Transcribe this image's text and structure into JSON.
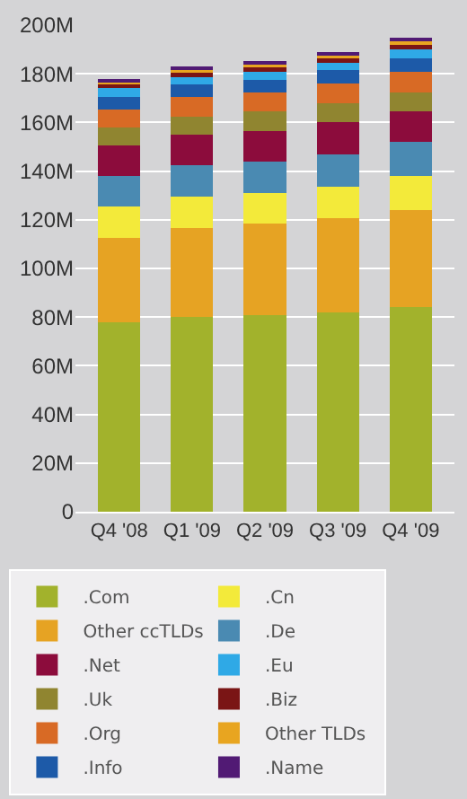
{
  "chart_data": {
    "type": "bar",
    "stacked": true,
    "categories": [
      "Q4 '08",
      "Q1 '09",
      "Q2 '09",
      "Q3 '09",
      "Q4 '09"
    ],
    "series": [
      {
        "name": ".Com",
        "color": "#a2b22c",
        "values": [
          78,
          80,
          81,
          82,
          84
        ]
      },
      {
        "name": "Other ccTLDs",
        "color": "#e6a323",
        "values": [
          34.5,
          36.5,
          37.5,
          38.5,
          40
        ]
      },
      {
        "name": ".Cn",
        "color": "#f3ea3a",
        "values": [
          13,
          13,
          12.5,
          13,
          14
        ]
      },
      {
        "name": ".De",
        "color": "#4a8ab2",
        "values": [
          12.5,
          13,
          13,
          13.5,
          14
        ]
      },
      {
        "name": ".Net",
        "color": "#8c0c3c",
        "values": [
          12.5,
          12.5,
          12.5,
          13,
          12.5
        ]
      },
      {
        "name": ".Uk",
        "color": "#908530",
        "values": [
          7.5,
          7.5,
          8,
          8,
          8
        ]
      },
      {
        "name": ".Org",
        "color": "#d86a25",
        "values": [
          7.5,
          8,
          8,
          8,
          8.5
        ]
      },
      {
        "name": ".Info",
        "color": "#1d5aa8",
        "values": [
          5,
          5,
          5,
          5.5,
          5.5
        ]
      },
      {
        "name": ".Eu",
        "color": "#2fa9e6",
        "values": [
          3.5,
          3,
          3.5,
          3,
          3.5
        ]
      },
      {
        "name": ".Biz",
        "color": "#7a1515",
        "values": [
          1.5,
          2,
          1.5,
          2,
          2
        ]
      },
      {
        "name": "Other TLDs",
        "color": "#e8a520",
        "values": [
          1.5,
          1.5,
          1.5,
          1.5,
          1.5
        ]
      },
      {
        "name": ".Name",
        "color": "#511a74",
        "values": [
          1,
          1,
          1,
          1,
          1
        ]
      }
    ],
    "ylim": [
      0,
      200
    ],
    "yticks": [
      0,
      {
        "value": 20,
        "label": "20M"
      },
      {
        "value": 40,
        "label": "40M"
      },
      {
        "value": 60,
        "label": "60M"
      },
      {
        "value": 80,
        "label": "80M"
      },
      {
        "value": 100,
        "label": "100M"
      },
      {
        "value": 120,
        "label": "120M"
      },
      {
        "value": 140,
        "label": "140M"
      },
      {
        "value": 160,
        "label": "160M"
      },
      {
        "value": 180,
        "label": "180M"
      },
      {
        "value": 200,
        "label": "200M"
      }
    ],
    "grid": "y",
    "legend": "bottom"
  }
}
